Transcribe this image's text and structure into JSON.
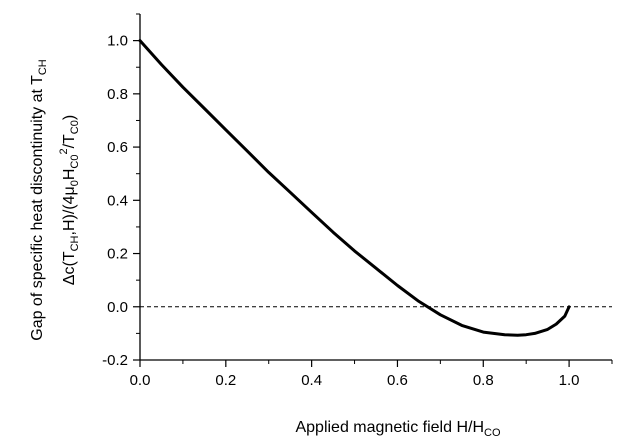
{
  "chart_data": {
    "type": "line",
    "title": "",
    "xlabel": {
      "main": "Applied magnetic field   H/H",
      "sub": "CO"
    },
    "ylabel": {
      "line1": {
        "main": "Gap of specific heat discontinuity at T",
        "sub": "CH"
      },
      "line2": [
        {
          "t": "Δc(T"
        },
        {
          "t": "CH",
          "sub": true
        },
        {
          "t": ",H)/(4μ"
        },
        {
          "t": "0",
          "sub": true
        },
        {
          "t": "H"
        },
        {
          "t": "C0",
          "sub": true
        },
        {
          "t": "2",
          "sup": true
        },
        {
          "t": "/T"
        },
        {
          "t": "C0",
          "sub": true
        },
        {
          "t": ")"
        }
      ]
    },
    "xlim": [
      0.0,
      1.1
    ],
    "ylim": [
      -0.2,
      1.1
    ],
    "x_ticks": [
      "0.0",
      "0.2",
      "0.4",
      "0.6",
      "0.8",
      "1.0"
    ],
    "y_ticks": [
      "-0.2",
      "0.0",
      "0.2",
      "0.4",
      "0.6",
      "0.8",
      "1.0"
    ],
    "grid": false,
    "reference_line": {
      "y": 0.0,
      "style": "dashed"
    },
    "series": [
      {
        "x": [
          0.0,
          0.05,
          0.1,
          0.15,
          0.2,
          0.25,
          0.3,
          0.35,
          0.4,
          0.45,
          0.5,
          0.55,
          0.6,
          0.65,
          0.7,
          0.75,
          0.8,
          0.85,
          0.88,
          0.9,
          0.92,
          0.95,
          0.97,
          0.99,
          1.0
        ],
        "y": [
          1.0,
          0.91,
          0.825,
          0.745,
          0.665,
          0.585,
          0.505,
          0.43,
          0.355,
          0.28,
          0.21,
          0.145,
          0.08,
          0.02,
          -0.03,
          -0.07,
          -0.095,
          -0.105,
          -0.107,
          -0.105,
          -0.1,
          -0.085,
          -0.065,
          -0.035,
          0.0
        ],
        "color": "#000000"
      }
    ]
  }
}
